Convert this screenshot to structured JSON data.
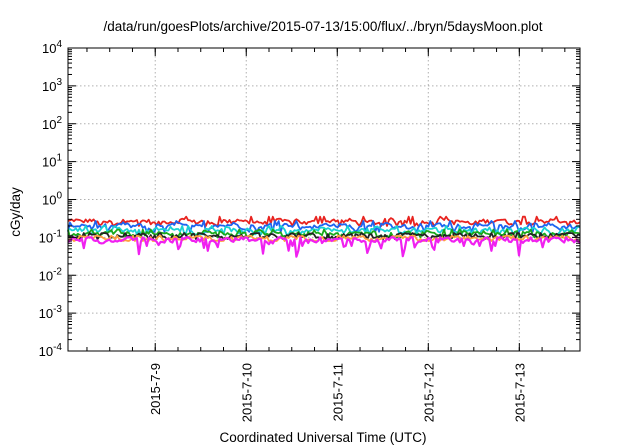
{
  "chart_data": {
    "type": "line",
    "title": "/data/run/goesPlots/archive/2015-07-13/15:00/flux/../bryn/5daysMoon.plot",
    "xlabel": "Coordinated Universal Time (UTC)",
    "ylabel": "cGy/day",
    "y_scale": "log",
    "ylim": [
      0.0001,
      10000
    ],
    "y_ticks": [
      {
        "base": "10",
        "exp": "-4",
        "value": 0.0001
      },
      {
        "base": "10",
        "exp": "-3",
        "value": 0.001
      },
      {
        "base": "10",
        "exp": "-2",
        "value": 0.01
      },
      {
        "base": "10",
        "exp": "-1",
        "value": 0.1
      },
      {
        "base": "10",
        "exp": "0",
        "value": 1
      },
      {
        "base": "10",
        "exp": "1",
        "value": 10
      },
      {
        "base": "10",
        "exp": "2",
        "value": 100
      },
      {
        "base": "10",
        "exp": "3",
        "value": 1000
      },
      {
        "base": "10",
        "exp": "4",
        "value": 10000
      }
    ],
    "x_type": "date",
    "xlim": [
      "2015-07-08T01:00",
      "2015-07-13T16:00"
    ],
    "x_ticks": [
      "2015-7-9",
      "2015-7-10",
      "2015-7-11",
      "2015-7-12",
      "2015-7-13"
    ],
    "grid": true,
    "legend": "none",
    "series": [
      {
        "color": "#e8231f",
        "level": 0.26,
        "min": 0.2,
        "max": 0.38
      },
      {
        "color": "#1e64f0",
        "level": 0.2,
        "min": 0.13,
        "max": 0.33
      },
      {
        "color": "#19d2d2",
        "level": 0.155,
        "min": 0.12,
        "max": 0.2
      },
      {
        "color": "#1aa81a",
        "level": 0.125,
        "min": 0.1,
        "max": 0.16
      },
      {
        "color": "#222222",
        "level": 0.11,
        "min": 0.09,
        "max": 0.13
      },
      {
        "color": "#ffa040",
        "level": 0.095,
        "min": 0.08,
        "max": 0.11
      },
      {
        "color": "#f020f0",
        "level": 0.085,
        "min": 0.028,
        "max": 0.1
      }
    ]
  }
}
